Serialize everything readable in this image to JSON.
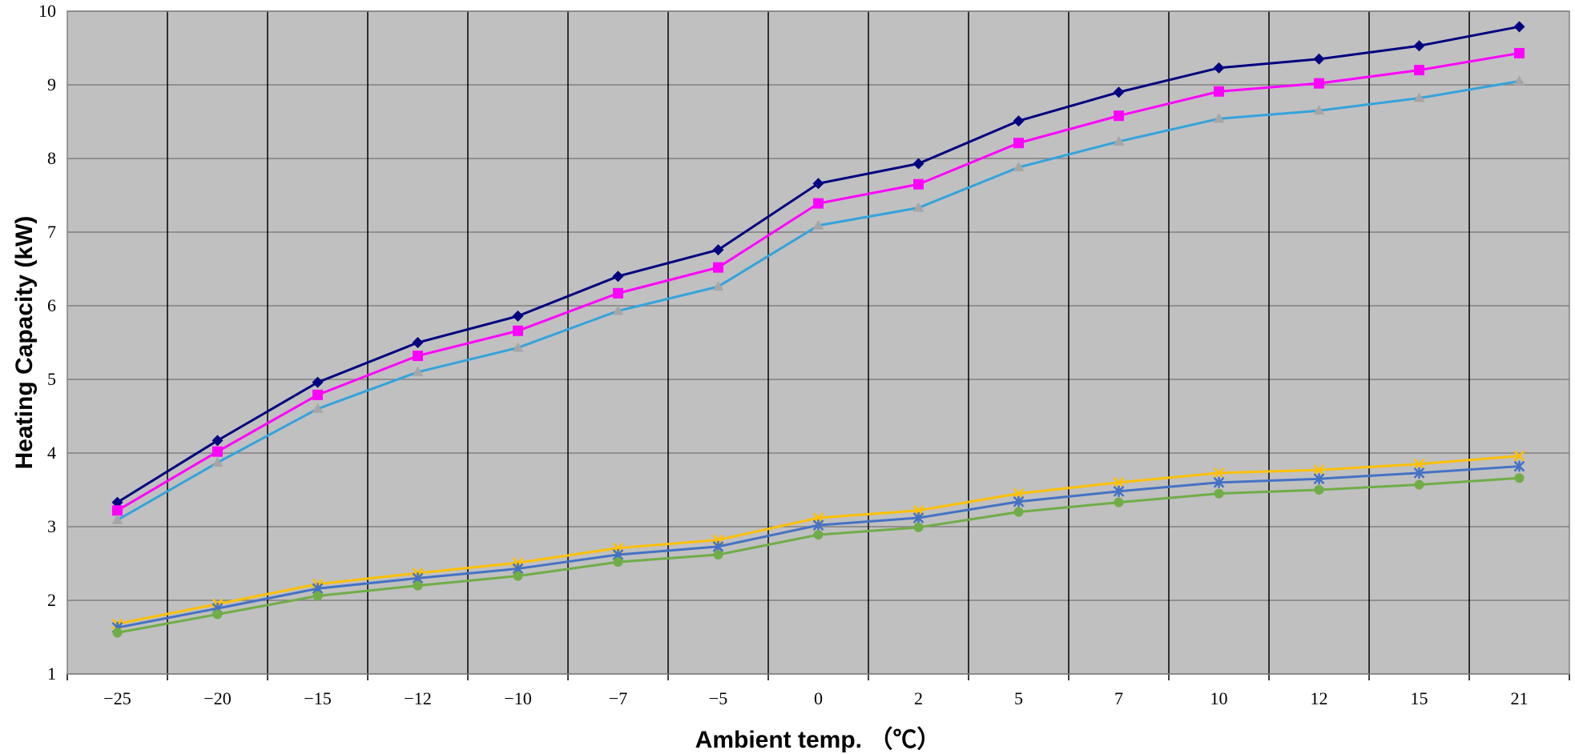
{
  "chart_data": {
    "type": "line",
    "title": "",
    "xlabel": "Ambient temp. （℃）",
    "ylabel": "Heating Capacity (kW)",
    "categories": [
      "-25",
      "-20",
      "-15",
      "-12",
      "-10",
      "-7",
      "-5",
      "0",
      "2",
      "5",
      "7",
      "10",
      "12",
      "15",
      "21"
    ],
    "ylim": [
      1,
      10
    ],
    "yticks": [
      "1",
      "2",
      "3",
      "4",
      "5",
      "6",
      "7",
      "8",
      "9",
      "10"
    ],
    "grid": true,
    "legend": "none",
    "background_color": "#c0c0c0",
    "series": [
      {
        "color": "#000080",
        "marker": "diamond",
        "values": [
          3.33,
          4.17,
          4.96,
          5.5,
          5.86,
          6.4,
          6.76,
          7.66,
          7.93,
          8.51,
          8.9,
          9.23,
          9.35,
          9.53,
          9.79
        ]
      },
      {
        "color": "#ff00ff",
        "marker": "square",
        "values": [
          3.22,
          4.02,
          4.79,
          5.32,
          5.66,
          6.17,
          6.52,
          7.39,
          7.65,
          8.21,
          8.58,
          8.91,
          9.02,
          9.2,
          9.43
        ]
      },
      {
        "color": "#33a3dc",
        "marker": "triangle",
        "values": [
          3.09,
          3.87,
          4.6,
          5.1,
          5.43,
          5.93,
          6.26,
          7.09,
          7.33,
          7.88,
          8.23,
          8.54,
          8.65,
          8.82,
          9.05
        ]
      },
      {
        "color": "#ffc000",
        "marker": "x",
        "values": [
          1.68,
          1.95,
          2.22,
          2.37,
          2.51,
          2.71,
          2.82,
          3.12,
          3.22,
          3.45,
          3.6,
          3.73,
          3.77,
          3.85,
          3.96
        ]
      },
      {
        "color": "#4472c4",
        "marker": "asterisk",
        "values": [
          1.63,
          1.89,
          2.16,
          2.3,
          2.43,
          2.62,
          2.73,
          3.02,
          3.12,
          3.34,
          3.48,
          3.6,
          3.65,
          3.73,
          3.82
        ]
      },
      {
        "color": "#70ad47",
        "marker": "circle",
        "values": [
          1.56,
          1.81,
          2.06,
          2.2,
          2.33,
          2.52,
          2.62,
          2.89,
          2.99,
          3.2,
          3.33,
          3.45,
          3.5,
          3.57,
          3.66
        ]
      }
    ]
  }
}
